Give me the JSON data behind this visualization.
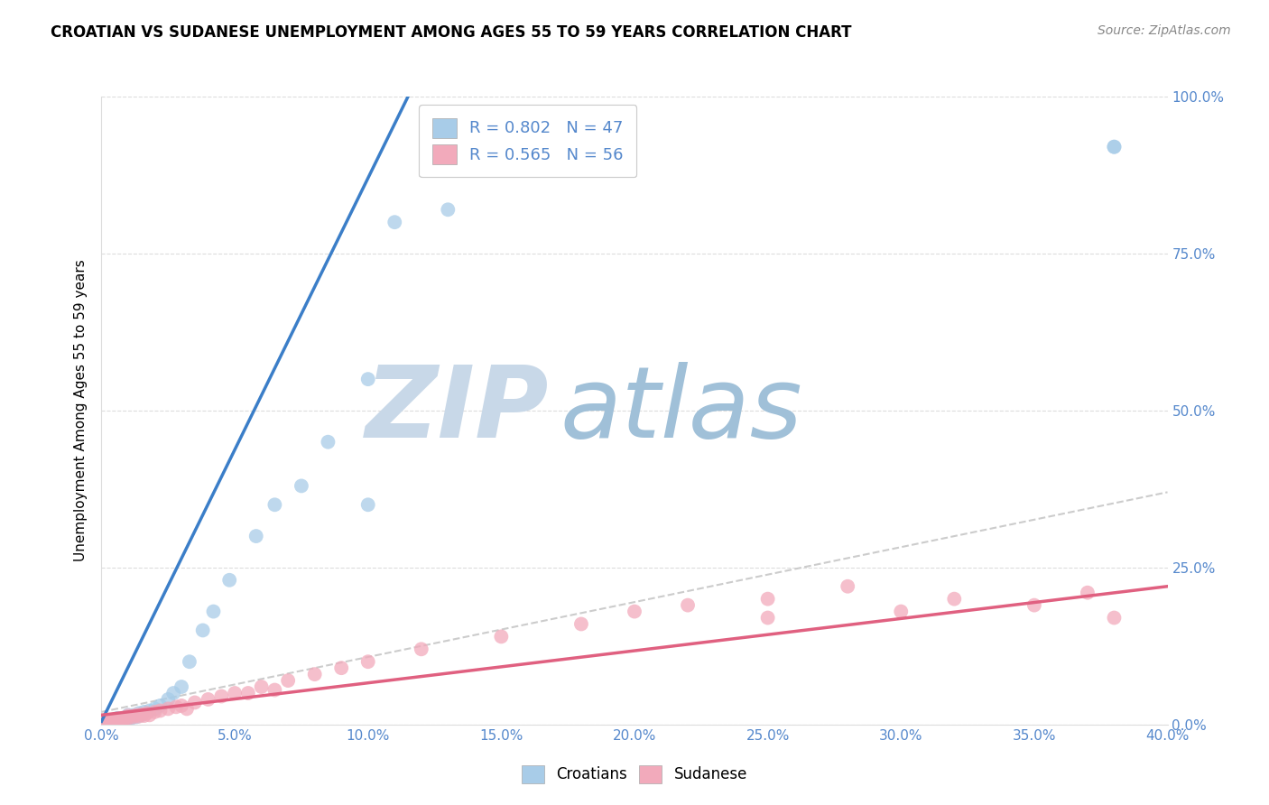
{
  "title": "CROATIAN VS SUDANESE UNEMPLOYMENT AMONG AGES 55 TO 59 YEARS CORRELATION CHART",
  "source": "Source: ZipAtlas.com",
  "xmin": 0.0,
  "xmax": 0.4,
  "ymin": 0.0,
  "ymax": 1.0,
  "legend_entry1": "R = 0.802   N = 47",
  "legend_entry2": "R = 0.565   N = 56",
  "croatian_color": "#A8CCE8",
  "sudanese_color": "#F2AABB",
  "blue_line_color": "#3B7EC8",
  "pink_line_color": "#E06080",
  "gray_dashed_color": "#CCCCCC",
  "watermark_text_zip": "ZIP",
  "watermark_text_atlas": "atlas",
  "watermark_color_zip": "#C8D8E8",
  "watermark_color_atlas": "#A0C0D8",
  "background_color": "#FFFFFF",
  "grid_color": "#DDDDDD",
  "tick_color": "#5588CC",
  "cro_line_x0": 0.0,
  "cro_line_y0": 0.005,
  "cro_line_x1": 0.115,
  "cro_line_y1": 1.0,
  "sud_line_x0": 0.0,
  "sud_line_y0": 0.015,
  "sud_line_x1": 0.4,
  "sud_line_y1": 0.22,
  "gray_line_x0": 0.0,
  "gray_line_y0": 0.02,
  "gray_line_x1": 0.4,
  "gray_line_y1": 0.37,
  "cro_scatter_x": [
    0.001,
    0.001,
    0.001,
    0.001,
    0.001,
    0.002,
    0.002,
    0.002,
    0.003,
    0.003,
    0.004,
    0.004,
    0.005,
    0.005,
    0.006,
    0.006,
    0.007,
    0.008,
    0.009,
    0.01,
    0.01,
    0.011,
    0.012,
    0.013,
    0.014,
    0.015,
    0.016,
    0.018,
    0.02,
    0.022,
    0.025,
    0.027,
    0.03,
    0.033,
    0.038,
    0.042,
    0.048,
    0.058,
    0.065,
    0.075,
    0.085,
    0.1,
    0.11,
    0.13,
    0.38,
    0.38,
    0.1
  ],
  "cro_scatter_y": [
    0.0,
    0.0,
    0.002,
    0.003,
    0.005,
    0.0,
    0.003,
    0.005,
    0.002,
    0.005,
    0.003,
    0.006,
    0.004,
    0.008,
    0.005,
    0.01,
    0.007,
    0.008,
    0.01,
    0.01,
    0.015,
    0.01,
    0.015,
    0.012,
    0.018,
    0.015,
    0.02,
    0.022,
    0.025,
    0.03,
    0.04,
    0.05,
    0.06,
    0.1,
    0.15,
    0.18,
    0.23,
    0.3,
    0.35,
    0.38,
    0.45,
    0.55,
    0.8,
    0.82,
    0.92,
    0.92,
    0.35
  ],
  "sud_scatter_x": [
    0.0,
    0.0,
    0.0,
    0.001,
    0.001,
    0.001,
    0.002,
    0.002,
    0.003,
    0.003,
    0.004,
    0.005,
    0.005,
    0.006,
    0.007,
    0.008,
    0.009,
    0.01,
    0.01,
    0.012,
    0.013,
    0.014,
    0.015,
    0.016,
    0.017,
    0.018,
    0.02,
    0.022,
    0.025,
    0.028,
    0.03,
    0.032,
    0.035,
    0.04,
    0.045,
    0.05,
    0.055,
    0.06,
    0.065,
    0.07,
    0.08,
    0.09,
    0.1,
    0.12,
    0.15,
    0.18,
    0.2,
    0.22,
    0.25,
    0.28,
    0.3,
    0.32,
    0.35,
    0.37,
    0.38,
    0.25
  ],
  "sud_scatter_y": [
    0.0,
    0.002,
    0.005,
    0.0,
    0.003,
    0.007,
    0.002,
    0.006,
    0.003,
    0.007,
    0.005,
    0.004,
    0.008,
    0.006,
    0.008,
    0.007,
    0.01,
    0.01,
    0.014,
    0.012,
    0.015,
    0.013,
    0.016,
    0.014,
    0.018,
    0.015,
    0.02,
    0.022,
    0.025,
    0.028,
    0.03,
    0.025,
    0.035,
    0.04,
    0.045,
    0.05,
    0.05,
    0.06,
    0.055,
    0.07,
    0.08,
    0.09,
    0.1,
    0.12,
    0.14,
    0.16,
    0.18,
    0.19,
    0.2,
    0.22,
    0.18,
    0.2,
    0.19,
    0.21,
    0.17,
    0.17
  ]
}
